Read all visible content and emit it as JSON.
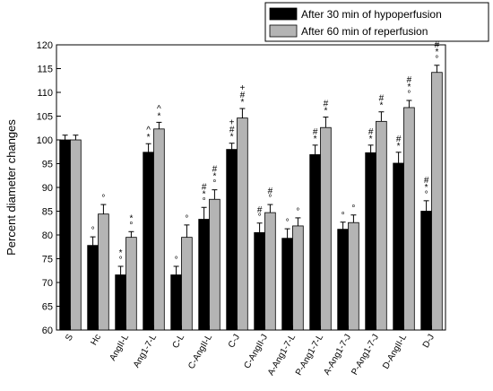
{
  "chart_data": {
    "type": "bar",
    "title": "",
    "xlabel": "",
    "ylabel": "Percent diameter changes",
    "ylim": [
      60,
      120
    ],
    "yticks": [
      60,
      65,
      70,
      75,
      80,
      85,
      90,
      95,
      100,
      105,
      110,
      115,
      120
    ],
    "grid": false,
    "legend_position": "top-right",
    "categories": [
      "S",
      "Hc",
      "AngII-L",
      "Ang1-7-L",
      "C-L",
      "C-AngII-L",
      "C-J",
      "C-AngII-J",
      "A-Ang1-7-L",
      "P-Ang1-7-L",
      "A-Ang1-7-J",
      "P-Ang1-7-J",
      "D-AngII-L",
      "D-J"
    ],
    "series": [
      {
        "name": "After 30 min of hypoperfusion",
        "color": "#000000",
        "values": [
          100,
          77.8,
          71.6,
          97.4,
          71.6,
          83.3,
          98.0,
          80.5,
          79.3,
          96.9,
          81.2,
          97.3,
          95.1,
          85.0
        ],
        "errors": [
          1.0,
          1.8,
          1.8,
          1.8,
          1.8,
          2.5,
          1.3,
          2.0,
          2.0,
          2.0,
          1.5,
          1.6,
          2.3,
          2.2
        ],
        "marks": [
          "",
          "°",
          "* °",
          "^ *",
          "°",
          "# * °",
          "+ # *",
          "# °",
          "°",
          "# *",
          "°",
          "# *",
          "# *",
          "# * °"
        ]
      },
      {
        "name": "After 60 min of reperfusion",
        "color": "#b4b4b4",
        "values": [
          100,
          84.4,
          79.5,
          102.3,
          79.5,
          87.5,
          104.6,
          84.7,
          81.9,
          102.6,
          82.6,
          103.9,
          106.8,
          114.2
        ],
        "errors": [
          1.0,
          2.0,
          1.2,
          1.4,
          2.6,
          2.0,
          2.0,
          1.7,
          1.7,
          2.2,
          1.6,
          2.0,
          1.5,
          1.5
        ],
        "marks": [
          "",
          "°",
          "* °",
          "^ *",
          "°",
          "# * °",
          "+ # *",
          "# °",
          "°",
          "# *",
          "°",
          "# *",
          "# * °",
          "# * °"
        ]
      }
    ]
  }
}
